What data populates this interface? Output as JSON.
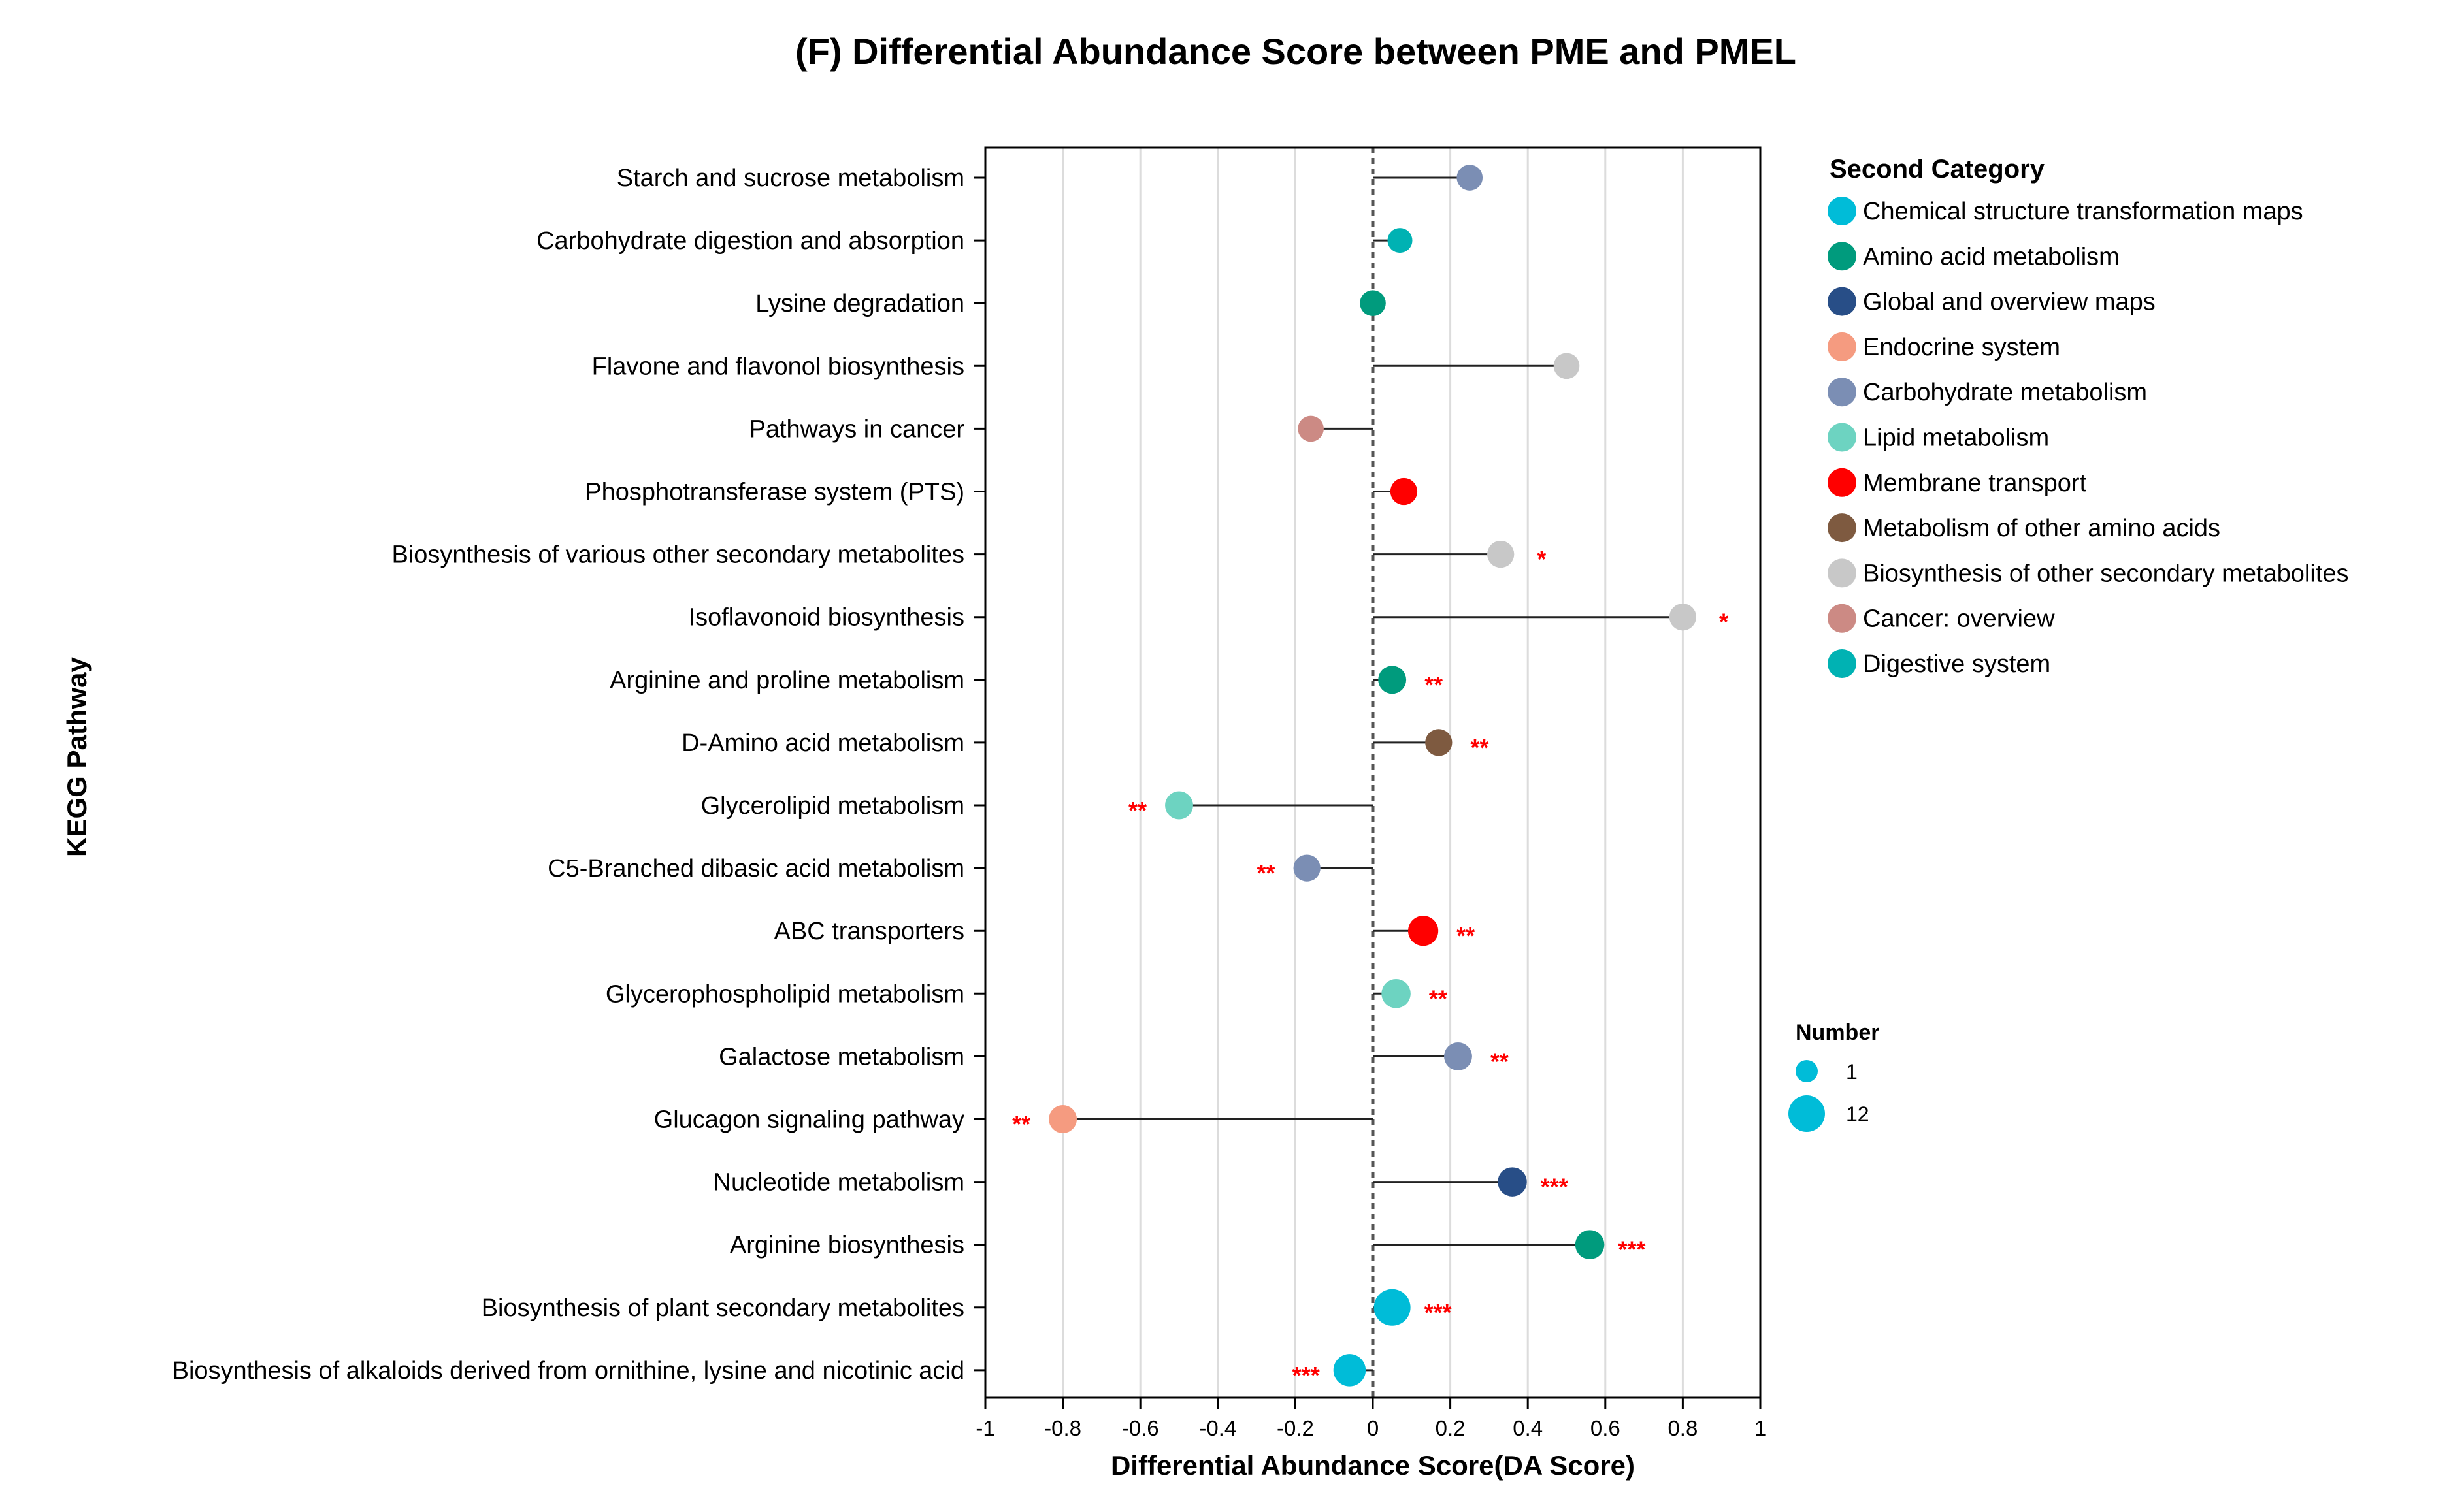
{
  "chart_data": {
    "type": "lollipop",
    "title": "(F) Differential Abundance Score between PME and PMEL",
    "xlabel": "Differential Abundance Score(DA Score)",
    "ylabel": "KEGG Pathway",
    "xlim": [
      -1,
      1
    ],
    "xticks": [
      "-1",
      "-0.8",
      "-0.6",
      "-0.4",
      "-0.2",
      "0",
      "0.2",
      "0.4",
      "0.6",
      "0.8",
      "1"
    ],
    "grid": true,
    "pathways": [
      {
        "name": "Starch and sucrose metabolism",
        "da": 0.25,
        "number": 2,
        "category": "Carbohydrate metabolism",
        "sig": ""
      },
      {
        "name": "Carbohydrate digestion and absorption",
        "da": 0.07,
        "number": 1,
        "category": "Digestive system",
        "sig": ""
      },
      {
        "name": "Lysine degradation",
        "da": 0.0,
        "number": 2,
        "category": "Amino acid metabolism",
        "sig": ""
      },
      {
        "name": "Flavone and flavonol biosynthesis",
        "da": 0.5,
        "number": 2,
        "category": "Biosynthesis of other secondary metabolites",
        "sig": ""
      },
      {
        "name": "Pathways in cancer",
        "da": -0.16,
        "number": 2,
        "category": "Cancer: overview",
        "sig": ""
      },
      {
        "name": "Phosphotransferase system (PTS)",
        "da": 0.08,
        "number": 3,
        "category": "Membrane transport",
        "sig": ""
      },
      {
        "name": "Biosynthesis of various other secondary metabolites",
        "da": 0.33,
        "number": 3,
        "category": "Biosynthesis of other secondary metabolites",
        "sig": "*"
      },
      {
        "name": "Isoflavonoid biosynthesis",
        "da": 0.8,
        "number": 3,
        "category": "Biosynthesis of other secondary metabolites",
        "sig": "*"
      },
      {
        "name": "Arginine and proline metabolism",
        "da": 0.05,
        "number": 4,
        "category": "Amino acid metabolism",
        "sig": "**"
      },
      {
        "name": "D-Amino acid metabolism",
        "da": 0.17,
        "number": 3,
        "category": "Metabolism of other amino acids",
        "sig": "**"
      },
      {
        "name": "Glycerolipid metabolism",
        "da": -0.5,
        "number": 4,
        "category": "Lipid metabolism",
        "sig": "**"
      },
      {
        "name": "C5-Branched dibasic acid metabolism",
        "da": -0.17,
        "number": 3,
        "category": "Carbohydrate metabolism",
        "sig": "**"
      },
      {
        "name": "ABC transporters",
        "da": 0.13,
        "number": 6,
        "category": "Membrane transport",
        "sig": "**"
      },
      {
        "name": "Glycerophospholipid metabolism",
        "da": 0.06,
        "number": 5,
        "category": "Lipid metabolism",
        "sig": "**"
      },
      {
        "name": "Galactose metabolism",
        "da": 0.22,
        "number": 4,
        "category": "Carbohydrate metabolism",
        "sig": "**"
      },
      {
        "name": "Glucagon signaling pathway",
        "da": -0.8,
        "number": 4,
        "category": "Endocrine system",
        "sig": "**"
      },
      {
        "name": "Nucleotide metabolism",
        "da": 0.36,
        "number": 5,
        "category": "Global and overview maps",
        "sig": "***"
      },
      {
        "name": "Arginine biosynthesis",
        "da": 0.56,
        "number": 5,
        "category": "Amino acid metabolism",
        "sig": "***"
      },
      {
        "name": "Biosynthesis of plant secondary metabolites",
        "da": 0.05,
        "number": 12,
        "category": "Chemical structure transformation maps",
        "sig": "***"
      },
      {
        "name": "Biosynthesis of alkaloids derived from ornithine, lysine and nicotinic acid",
        "da": -0.06,
        "number": 8,
        "category": "Chemical structure transformation maps",
        "sig": "***"
      }
    ],
    "legend_category": {
      "title": "Second Category",
      "items": [
        {
          "label": "Chemical structure transformation maps",
          "color": "#00BCD8"
        },
        {
          "label": "Amino acid metabolism",
          "color": "#009B7D"
        },
        {
          "label": "Global and overview maps",
          "color": "#284E87"
        },
        {
          "label": "Endocrine system",
          "color": "#F59B80"
        },
        {
          "label": "Carbohydrate metabolism",
          "color": "#7B8EB4"
        },
        {
          "label": "Lipid metabolism",
          "color": "#6DD3C1"
        },
        {
          "label": "Membrane transport",
          "color": "#FF0000"
        },
        {
          "label": "Metabolism of other amino acids",
          "color": "#7E5A40"
        },
        {
          "label": "Biosynthesis of other secondary metabolites",
          "color": "#C8C8C8"
        },
        {
          "label": "Cancer: overview",
          "color": "#CC8A84"
        },
        {
          "label": "Digestive system",
          "color": "#00B2B3"
        }
      ]
    },
    "legend_size": {
      "title": "Number",
      "items": [
        {
          "label": "1",
          "value": 1
        },
        {
          "label": "12",
          "value": 12
        }
      ],
      "color": "#00BCD8"
    },
    "sig_color": "#FF0000"
  }
}
